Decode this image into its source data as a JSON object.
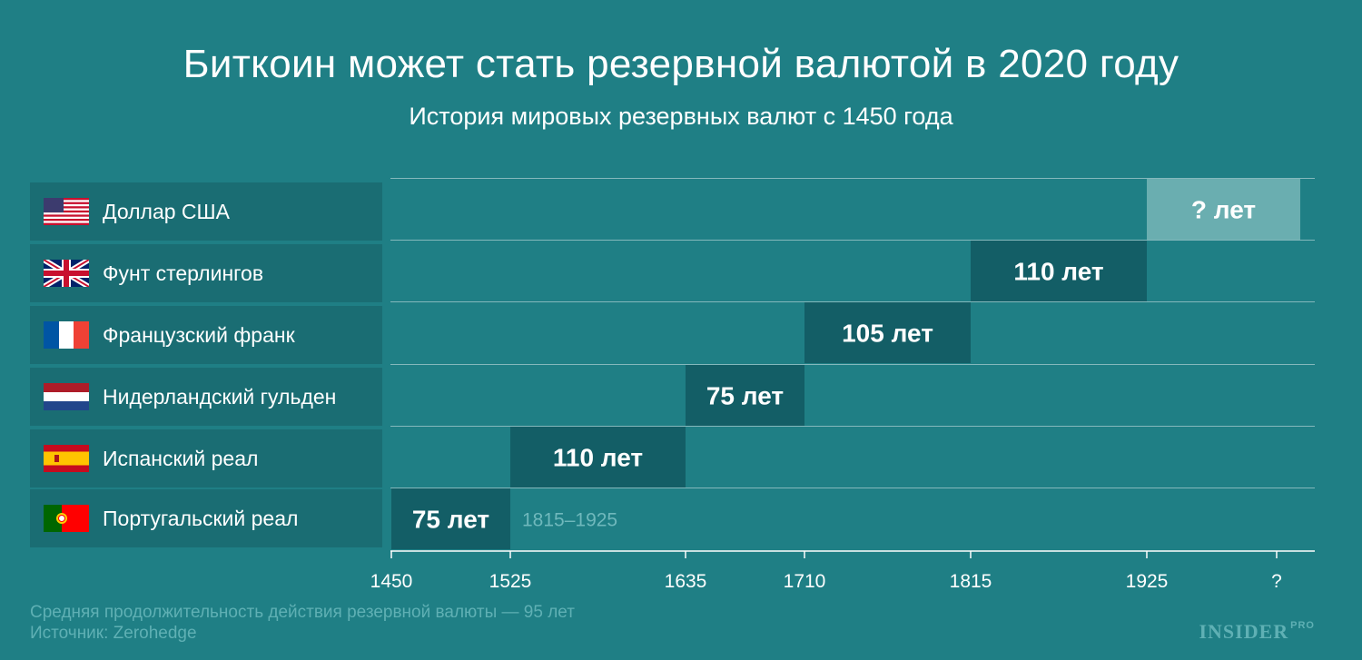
{
  "title": "Биткоин может стать резервной валютой в 2020 году",
  "subtitle": "История мировых резервных валют с 1450 года",
  "footer": {
    "note": "Средняя продолжительность действия резервной валюты — 95 лет",
    "source": "Источник: Zerohedge",
    "logo": "INSIDER",
    "logo_suffix": "PRO"
  },
  "colors": {
    "background": "#1f7f85",
    "bar": "#135e66",
    "bar_current": "#6aaeb0",
    "label_panel": "#1a6d73"
  },
  "chart_data": {
    "type": "bar",
    "orientation": "horizontal-timeline",
    "title": "Биткоин может стать резервной валютой в 2020 году",
    "subtitle": "История мировых резервных валют с 1450 года",
    "x_ticks": [
      "1450",
      "1525",
      "1635",
      "1710",
      "1815",
      "1925",
      "?"
    ],
    "xlim": [
      1450,
      2020
    ],
    "series": [
      {
        "name": "Доллар США",
        "flag": "usa",
        "start": 1925,
        "end": 2020,
        "label": "? лет",
        "current": true
      },
      {
        "name": "Фунт стерлингов",
        "flag": "uk",
        "start": 1815,
        "end": 1925,
        "label": "110 лет"
      },
      {
        "name": "Французский франк",
        "flag": "france",
        "start": 1710,
        "end": 1815,
        "label": "105 лет"
      },
      {
        "name": "Нидерландский гульден",
        "flag": "netherlands",
        "start": 1635,
        "end": 1710,
        "label": "75 лет"
      },
      {
        "name": "Испанский реал",
        "flag": "spain",
        "start": 1525,
        "end": 1635,
        "label": "110 лет"
      },
      {
        "name": "Португальский реал",
        "flag": "portugal",
        "start": 1450,
        "end": 1525,
        "label": "75 лет"
      }
    ],
    "annotation": "1815–1925"
  }
}
